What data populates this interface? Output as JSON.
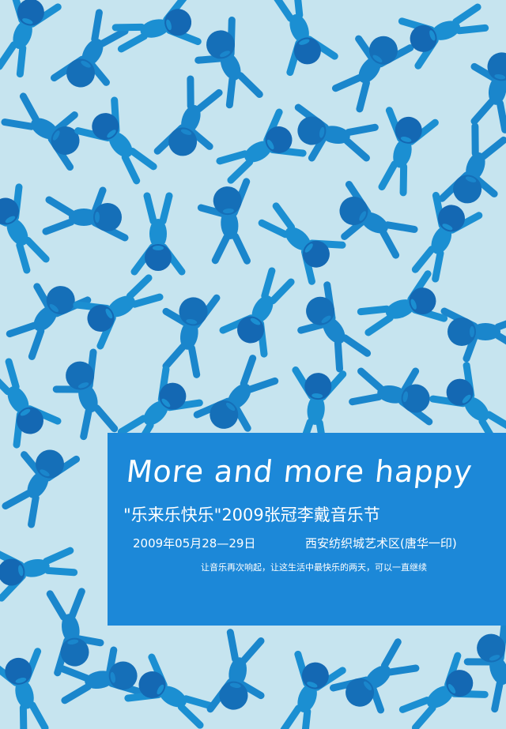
{
  "background": {
    "pattern": "repeating-blue-dancing-figures",
    "colors": {
      "background": "#c6e4ef",
      "figure_light": "#1b8fd2",
      "figure_dark": "#1468b3",
      "panel": "#1c88d8",
      "text": "#ffffff"
    }
  },
  "panel": {
    "headline": "More and more happy",
    "festival_title": "\"乐来乐快乐\"2009张冠李戴音乐节",
    "date": "2009年05月28—29日",
    "venue": "西安纺织城艺术区(唐华一印)",
    "slogan": "让音乐再次响起，让这生活中最快乐的两天，可以一直继续"
  }
}
